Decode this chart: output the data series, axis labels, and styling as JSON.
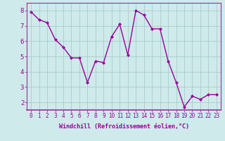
{
  "x": [
    0,
    1,
    2,
    3,
    4,
    5,
    6,
    7,
    8,
    9,
    10,
    11,
    12,
    13,
    14,
    15,
    16,
    17,
    18,
    19,
    20,
    21,
    22,
    23
  ],
  "y": [
    7.9,
    7.4,
    7.2,
    6.1,
    5.6,
    4.9,
    4.9,
    3.3,
    4.7,
    4.6,
    6.3,
    7.1,
    5.1,
    8.0,
    7.7,
    6.8,
    6.8,
    4.7,
    3.3,
    1.7,
    2.4,
    2.2,
    2.5,
    2.5
  ],
  "line_color": "#990099",
  "marker": "D",
  "markersize": 2.0,
  "linewidth": 1.0,
  "xlabel": "Windchill (Refroidissement éolien,°C)",
  "xlabel_fontsize": 6.0,
  "xtick_labels": [
    "0",
    "1",
    "2",
    "3",
    "4",
    "5",
    "6",
    "7",
    "8",
    "9",
    "10",
    "11",
    "12",
    "13",
    "14",
    "15",
    "16",
    "17",
    "18",
    "19",
    "20",
    "21",
    "22",
    "23"
  ],
  "ylim": [
    1.5,
    8.5
  ],
  "yticks": [
    2,
    3,
    4,
    5,
    6,
    7,
    8
  ],
  "background_color": "#ceeaea",
  "grid_color": "#aacccc",
  "tick_color": "#990099",
  "tick_fontsize": 5.5,
  "spine_color": "#993399"
}
